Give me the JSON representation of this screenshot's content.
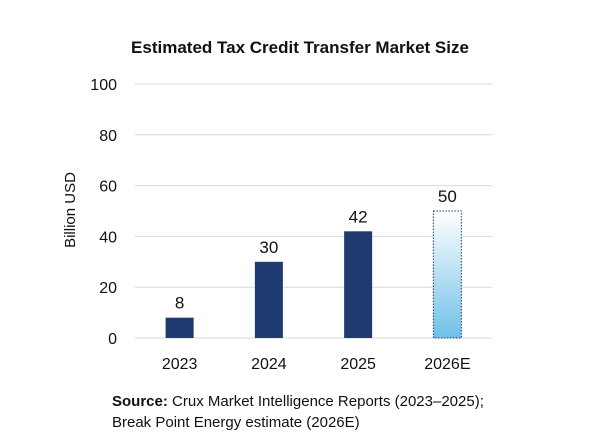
{
  "chart_data": {
    "type": "bar",
    "title": "Estimated Tax Credit Transfer Market Size",
    "xlabel": "",
    "ylabel": "Billion USD",
    "categories": [
      "2023",
      "2024",
      "2025",
      "2026E"
    ],
    "values": [
      8,
      30,
      42,
      50
    ],
    "data_labels": [
      "8",
      "30",
      "42",
      "50"
    ],
    "ylim": [
      0,
      100
    ],
    "yticks": [
      0,
      20,
      40,
      60,
      80,
      100
    ],
    "grid": true,
    "legend": "none",
    "colors": {
      "bar": "#1f3a6e",
      "estimate_fill_top": "#ffffff",
      "estimate_fill_bottom": "#6fc0e8",
      "estimate_border": "#1f3a6e",
      "grid": "#d9d9d9"
    }
  },
  "source": {
    "label": "Source:",
    "line1": " Crux Market Intelligence Reports (2023–2025);",
    "line2": "Break Point Energy estimate (2026E)"
  }
}
